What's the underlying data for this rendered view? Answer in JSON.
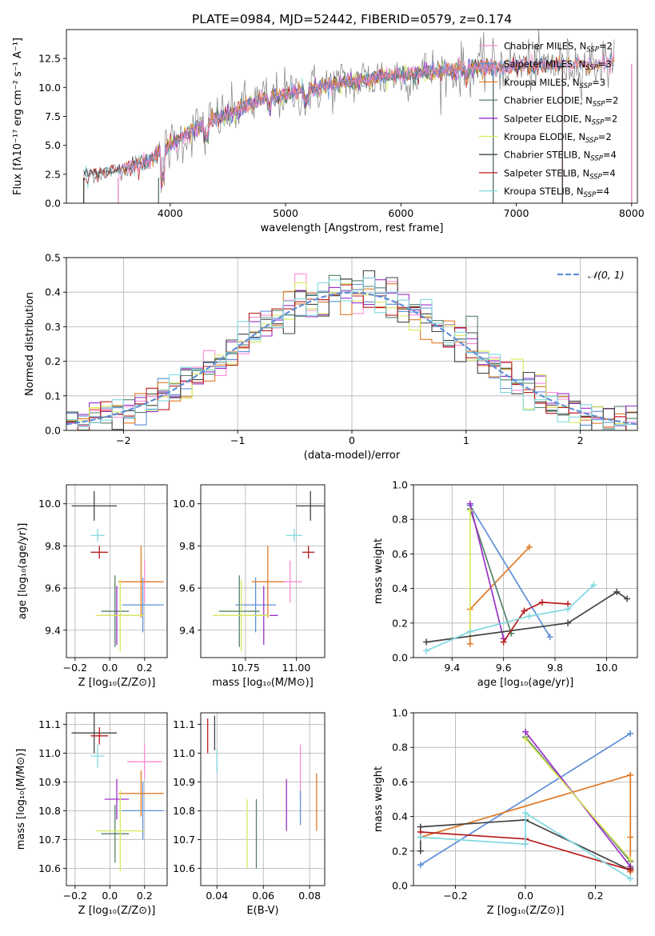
{
  "chart_data": [
    {
      "type": "line",
      "title": "PLATE=0984, MJD=52442, FIBERID=0579, z=0.174",
      "xlabel": "wavelength [Angstrom, rest frame]",
      "ylabel": "Flux [fλ10⁻¹⁷ erg cm⁻² s⁻¹ A⁻¹]",
      "xlim": [
        3100,
        8050
      ],
      "ylim": [
        0,
        15
      ],
      "xticks": [
        4000,
        5000,
        6000,
        7000,
        8000
      ],
      "yticks": [
        0.0,
        2.5,
        5.0,
        7.5,
        10.0,
        12.5
      ],
      "grid": false,
      "legend_position": "top-right",
      "spectrum_envelope": {
        "x": [
          3250,
          3400,
          3600,
          3800,
          3950,
          4100,
          4300,
          4500,
          4700,
          4900,
          5100,
          5300,
          5500,
          5700,
          5900,
          6100,
          6300,
          6500,
          6700,
          6900,
          7100,
          7300,
          7500,
          7700,
          7850
        ],
        "y": [
          2.4,
          2.6,
          3.0,
          3.6,
          4.6,
          5.6,
          7.0,
          7.6,
          8.6,
          9.2,
          9.6,
          10.0,
          10.4,
          10.7,
          11.0,
          11.2,
          11.4,
          11.5,
          11.8,
          11.8,
          11.9,
          12.0,
          12.0,
          12.1,
          12.2
        ]
      },
      "series": [
        {
          "name": "Chabrier MILES, N_SSP=2",
          "color": "#ff8ad8",
          "segments": [
            [
              3550,
              8000
            ]
          ]
        },
        {
          "name": "Salpeter MILES, N_SSP=3",
          "color": "#5f8fd8",
          "segments": [
            [
              3550,
              8000
            ]
          ]
        },
        {
          "name": "Kroupa MILES, N_SSP=3",
          "color": "#e07b28",
          "segments": [
            [
              3550,
              8000
            ]
          ]
        },
        {
          "name": "Chabrier ELODIE, N_SSP=2",
          "color": "#55806a",
          "segments": [
            [
              3900,
              6800
            ]
          ]
        },
        {
          "name": "Salpeter ELODIE, N_SSP=2",
          "color": "#9b30c8",
          "segments": [
            [
              3900,
              6800
            ]
          ]
        },
        {
          "name": "Kroupa ELODIE, N_SSP=2",
          "color": "#d8e85a",
          "segments": [
            [
              3900,
              6800
            ]
          ]
        },
        {
          "name": "Chabrier STELIB, N_SSP=4",
          "color": "#444444",
          "segments": [
            [
              3250,
              7400
            ]
          ]
        },
        {
          "name": "Salpeter STELIB, N_SSP=4",
          "color": "#b81d1d",
          "segments": [
            [
              3250,
              7400
            ]
          ]
        },
        {
          "name": "Kroupa STELIB, N_SSP=4",
          "color": "#7fd8e0",
          "segments": [
            [
              3250,
              7400
            ]
          ]
        },
        {
          "name": "",
          "color": "#808080",
          "segments": [
            [
              3250,
              7850
            ]
          ]
        }
      ]
    },
    {
      "type": "line",
      "xlabel": "(data-model)/error",
      "ylabel": "Normed distribution",
      "xlim": [
        -2.5,
        2.5
      ],
      "ylim": [
        0.0,
        0.5
      ],
      "xticks": [
        -2,
        -1,
        0,
        1,
        2
      ],
      "yticks": [
        0.0,
        0.1,
        0.2,
        0.3,
        0.4,
        0.5
      ],
      "grid": true,
      "legend_position": "top-right",
      "legend": [
        "𝒩(0, 1)"
      ],
      "gaussian_color": "#5f8fd8",
      "bin_width": 0.1,
      "histogram_colors": [
        "#ff8ad8",
        "#5f8fd8",
        "#e07b28",
        "#55806a",
        "#9b30c8",
        "#d8e85a",
        "#444444",
        "#b81d1d",
        "#7fd8e0"
      ]
    },
    {
      "type": "scatter",
      "xlabel": "Z [log₁₀(Z/Z⊙)]",
      "ylabel": "age  [log₁₀(age/yr)]",
      "xlim": [
        -0.25,
        0.33
      ],
      "ylim": [
        9.27,
        10.09
      ],
      "xticks": [
        -0.2,
        0.0,
        0.2
      ],
      "yticks": [
        9.4,
        9.6,
        9.8,
        10.0
      ],
      "grid": true,
      "points": [
        {
          "color": "#ff8ad8",
          "x": 0.2,
          "y": 9.63,
          "xerr": 0.1,
          "yerr": 0.1
        },
        {
          "color": "#5f8fd8",
          "x": 0.19,
          "y": 9.52,
          "xerr": 0.12,
          "yerr": 0.13
        },
        {
          "color": "#e07b28",
          "x": 0.18,
          "y": 9.63,
          "xerr": 0.13,
          "yerr": 0.17
        },
        {
          "color": "#55806a",
          "x": 0.03,
          "y": 9.49,
          "xerr": 0.08,
          "yerr": 0.17
        },
        {
          "color": "#9b30c8",
          "x": 0.04,
          "y": 9.47,
          "xerr": 0.07,
          "yerr": 0.14
        },
        {
          "color": "#d8e85a",
          "x": 0.06,
          "y": 9.47,
          "xerr": 0.14,
          "yerr": 0.17
        },
        {
          "color": "#444444",
          "x": -0.09,
          "y": 9.99,
          "xerr": 0.13,
          "yerr": 0.07
        },
        {
          "color": "#b81d1d",
          "x": -0.06,
          "y": 9.77,
          "xerr": 0.05,
          "yerr": 0.03
        },
        {
          "color": "#7fd8e0",
          "x": -0.07,
          "y": 9.85,
          "xerr": 0.04,
          "yerr": 0.03
        }
      ]
    },
    {
      "type": "scatter",
      "xlabel": "mass [log₁₀(M/M⊙)]",
      "ylabel": "",
      "xlim": [
        10.53,
        11.14
      ],
      "ylim": [
        9.27,
        10.09
      ],
      "xticks": [
        10.75,
        11.0
      ],
      "yticks": [
        9.4,
        9.6,
        9.8,
        10.0
      ],
      "grid": true,
      "points": [
        {
          "color": "#ff8ad8",
          "x": 10.97,
          "y": 9.63,
          "xerr": 0.06,
          "yerr": 0.1
        },
        {
          "color": "#5f8fd8",
          "x": 10.8,
          "y": 9.52,
          "xerr": 0.1,
          "yerr": 0.13
        },
        {
          "color": "#e07b28",
          "x": 10.86,
          "y": 9.63,
          "xerr": 0.08,
          "yerr": 0.17
        },
        {
          "color": "#55806a",
          "x": 10.72,
          "y": 9.49,
          "xerr": 0.1,
          "yerr": 0.17
        },
        {
          "color": "#9b30c8",
          "x": 10.84,
          "y": 9.47,
          "xerr": 0.07,
          "yerr": 0.14
        },
        {
          "color": "#d8e85a",
          "x": 10.73,
          "y": 9.47,
          "xerr": 0.14,
          "yerr": 0.17
        },
        {
          "color": "#444444",
          "x": 11.07,
          "y": 9.99,
          "xerr": 0.07,
          "yerr": 0.07
        },
        {
          "color": "#b81d1d",
          "x": 11.06,
          "y": 9.77,
          "xerr": 0.03,
          "yerr": 0.03
        },
        {
          "color": "#7fd8e0",
          "x": 10.99,
          "y": 9.85,
          "xerr": 0.04,
          "yerr": 0.03
        }
      ]
    },
    {
      "type": "line",
      "xlabel": "age  [log₁₀(age/yr)]",
      "ylabel": "mass weight",
      "xlim": [
        9.25,
        10.12
      ],
      "ylim": [
        0.0,
        1.0
      ],
      "xticks": [
        9.4,
        9.6,
        9.8,
        10.0
      ],
      "yticks": [
        0.0,
        0.2,
        0.4,
        0.6,
        0.8,
        1.0
      ],
      "grid": true,
      "series": [
        {
          "color": "#5f8fd8",
          "x": [
            9.47,
            9.78
          ],
          "y": [
            0.88,
            0.12
          ]
        },
        {
          "color": "#e07b28",
          "x": [
            9.47,
            9.47,
            9.7
          ],
          "y": [
            0.08,
            0.28,
            0.64
          ]
        },
        {
          "color": "#55806a",
          "x": [
            9.47,
            9.63
          ],
          "y": [
            0.86,
            0.14
          ]
        },
        {
          "color": "#9b30c8",
          "x": [
            9.47,
            9.6
          ],
          "y": [
            0.89,
            0.11
          ]
        },
        {
          "color": "#d8e85a",
          "x": [
            9.47,
            9.47
          ],
          "y": [
            0.85,
            0.15
          ]
        },
        {
          "color": "#444444",
          "x": [
            9.3,
            9.85,
            10.04,
            10.08
          ],
          "y": [
            0.09,
            0.2,
            0.38,
            0.34
          ]
        },
        {
          "color": "#b81d1d",
          "x": [
            9.6,
            9.68,
            9.75,
            9.85
          ],
          "y": [
            0.09,
            0.27,
            0.32,
            0.31
          ]
        },
        {
          "color": "#7fd8e0",
          "x": [
            9.3,
            9.47,
            9.7,
            9.85,
            9.95
          ],
          "y": [
            0.04,
            0.15,
            0.24,
            0.28,
            0.42
          ]
        }
      ]
    },
    {
      "type": "scatter",
      "xlabel": "Z [log₁₀(Z/Z⊙)]",
      "ylabel": "mass [log₁₀(M/M⊙)]",
      "xlim": [
        -0.25,
        0.33
      ],
      "ylim": [
        10.54,
        11.14
      ],
      "xticks": [
        -0.2,
        0.0,
        0.2
      ],
      "yticks": [
        10.6,
        10.7,
        10.8,
        10.9,
        11.0,
        11.1
      ],
      "grid": true,
      "points": [
        {
          "color": "#ff8ad8",
          "x": 0.2,
          "y": 10.97,
          "xerr": 0.1,
          "yerr": 0.06
        },
        {
          "color": "#5f8fd8",
          "x": 0.19,
          "y": 10.8,
          "xerr": 0.12,
          "yerr": 0.1
        },
        {
          "color": "#e07b28",
          "x": 0.18,
          "y": 10.86,
          "xerr": 0.13,
          "yerr": 0.08
        },
        {
          "color": "#55806a",
          "x": 0.03,
          "y": 10.72,
          "xerr": 0.08,
          "yerr": 0.1
        },
        {
          "color": "#9b30c8",
          "x": 0.04,
          "y": 10.84,
          "xerr": 0.07,
          "yerr": 0.07
        },
        {
          "color": "#d8e85a",
          "x": 0.06,
          "y": 10.73,
          "xerr": 0.14,
          "yerr": 0.14
        },
        {
          "color": "#444444",
          "x": -0.09,
          "y": 11.07,
          "xerr": 0.13,
          "yerr": 0.07
        },
        {
          "color": "#b81d1d",
          "x": -0.06,
          "y": 11.06,
          "xerr": 0.05,
          "yerr": 0.03
        },
        {
          "color": "#7fd8e0",
          "x": -0.07,
          "y": 10.99,
          "xerr": 0.04,
          "yerr": 0.04
        }
      ]
    },
    {
      "type": "scatter",
      "xlabel": "E(B-V)",
      "ylabel": "",
      "xlim": [
        0.033,
        0.0865
      ],
      "ylim": [
        10.54,
        11.14
      ],
      "xticks": [
        0.04,
        0.06,
        0.08
      ],
      "yticks": [
        10.6,
        10.7,
        10.8,
        10.9,
        11.0,
        11.1
      ],
      "grid": true,
      "points": [
        {
          "color": "#ff8ad8",
          "x": 0.076,
          "y": 10.94,
          "xerr": 0,
          "yerr": 0.09
        },
        {
          "color": "#5f8fd8",
          "x": 0.076,
          "y": 10.81,
          "xerr": 0,
          "yerr": 0.06
        },
        {
          "color": "#e07b28",
          "x": 0.083,
          "y": 10.83,
          "xerr": 0,
          "yerr": 0.1
        },
        {
          "color": "#55806a",
          "x": 0.057,
          "y": 10.72,
          "xerr": 0,
          "yerr": 0.12
        },
        {
          "color": "#9b30c8",
          "x": 0.07,
          "y": 10.82,
          "xerr": 0,
          "yerr": 0.09
        },
        {
          "color": "#d8e85a",
          "x": 0.053,
          "y": 10.72,
          "xerr": 0,
          "yerr": 0.12
        },
        {
          "color": "#444444",
          "x": 0.039,
          "y": 11.07,
          "xerr": 0,
          "yerr": 0.06
        },
        {
          "color": "#b81d1d",
          "x": 0.036,
          "y": 11.06,
          "xerr": 0,
          "yerr": 0.06
        },
        {
          "color": "#7fd8e0",
          "x": 0.04,
          "y": 10.97,
          "xerr": 0,
          "yerr": 0.04
        }
      ]
    },
    {
      "type": "line",
      "xlabel": "Z [log₁₀(Z/Z⊙)]",
      "ylabel": "mass weight",
      "xlim": [
        -0.32,
        0.32
      ],
      "ylim": [
        0.0,
        1.0
      ],
      "xticks": [
        -0.2,
        0.0,
        0.2
      ],
      "yticks": [
        0.0,
        0.2,
        0.4,
        0.6,
        0.8,
        1.0
      ],
      "grid": true,
      "series": [
        {
          "color": "#5f8fd8",
          "x": [
            -0.3,
            0.3
          ],
          "y": [
            0.12,
            0.88
          ]
        },
        {
          "color": "#e07b28",
          "x": [
            -0.3,
            0.3,
            0.3,
            0.3
          ],
          "y": [
            0.28,
            0.64,
            0.28,
            0.08
          ]
        },
        {
          "color": "#55806a",
          "x": [
            0.0,
            0.3
          ],
          "y": [
            0.86,
            0.14
          ]
        },
        {
          "color": "#9b30c8",
          "x": [
            0.0,
            0.3
          ],
          "y": [
            0.89,
            0.11
          ]
        },
        {
          "color": "#d8e85a",
          "x": [
            0.0,
            0.3
          ],
          "y": [
            0.85,
            0.15
          ]
        },
        {
          "color": "#444444",
          "x": [
            -0.3,
            -0.3,
            0.0,
            0.3,
            0.3
          ],
          "y": [
            0.2,
            0.34,
            0.38,
            0.09,
            0.1
          ]
        },
        {
          "color": "#b81d1d",
          "x": [
            -0.3,
            0.0,
            0.3,
            0.3
          ],
          "y": [
            0.31,
            0.27,
            0.09,
            0.09
          ]
        },
        {
          "color": "#7fd8e0",
          "x": [
            -0.3,
            0.0,
            0.0,
            0.3
          ],
          "y": [
            0.28,
            0.24,
            0.42,
            0.04
          ]
        }
      ]
    }
  ]
}
